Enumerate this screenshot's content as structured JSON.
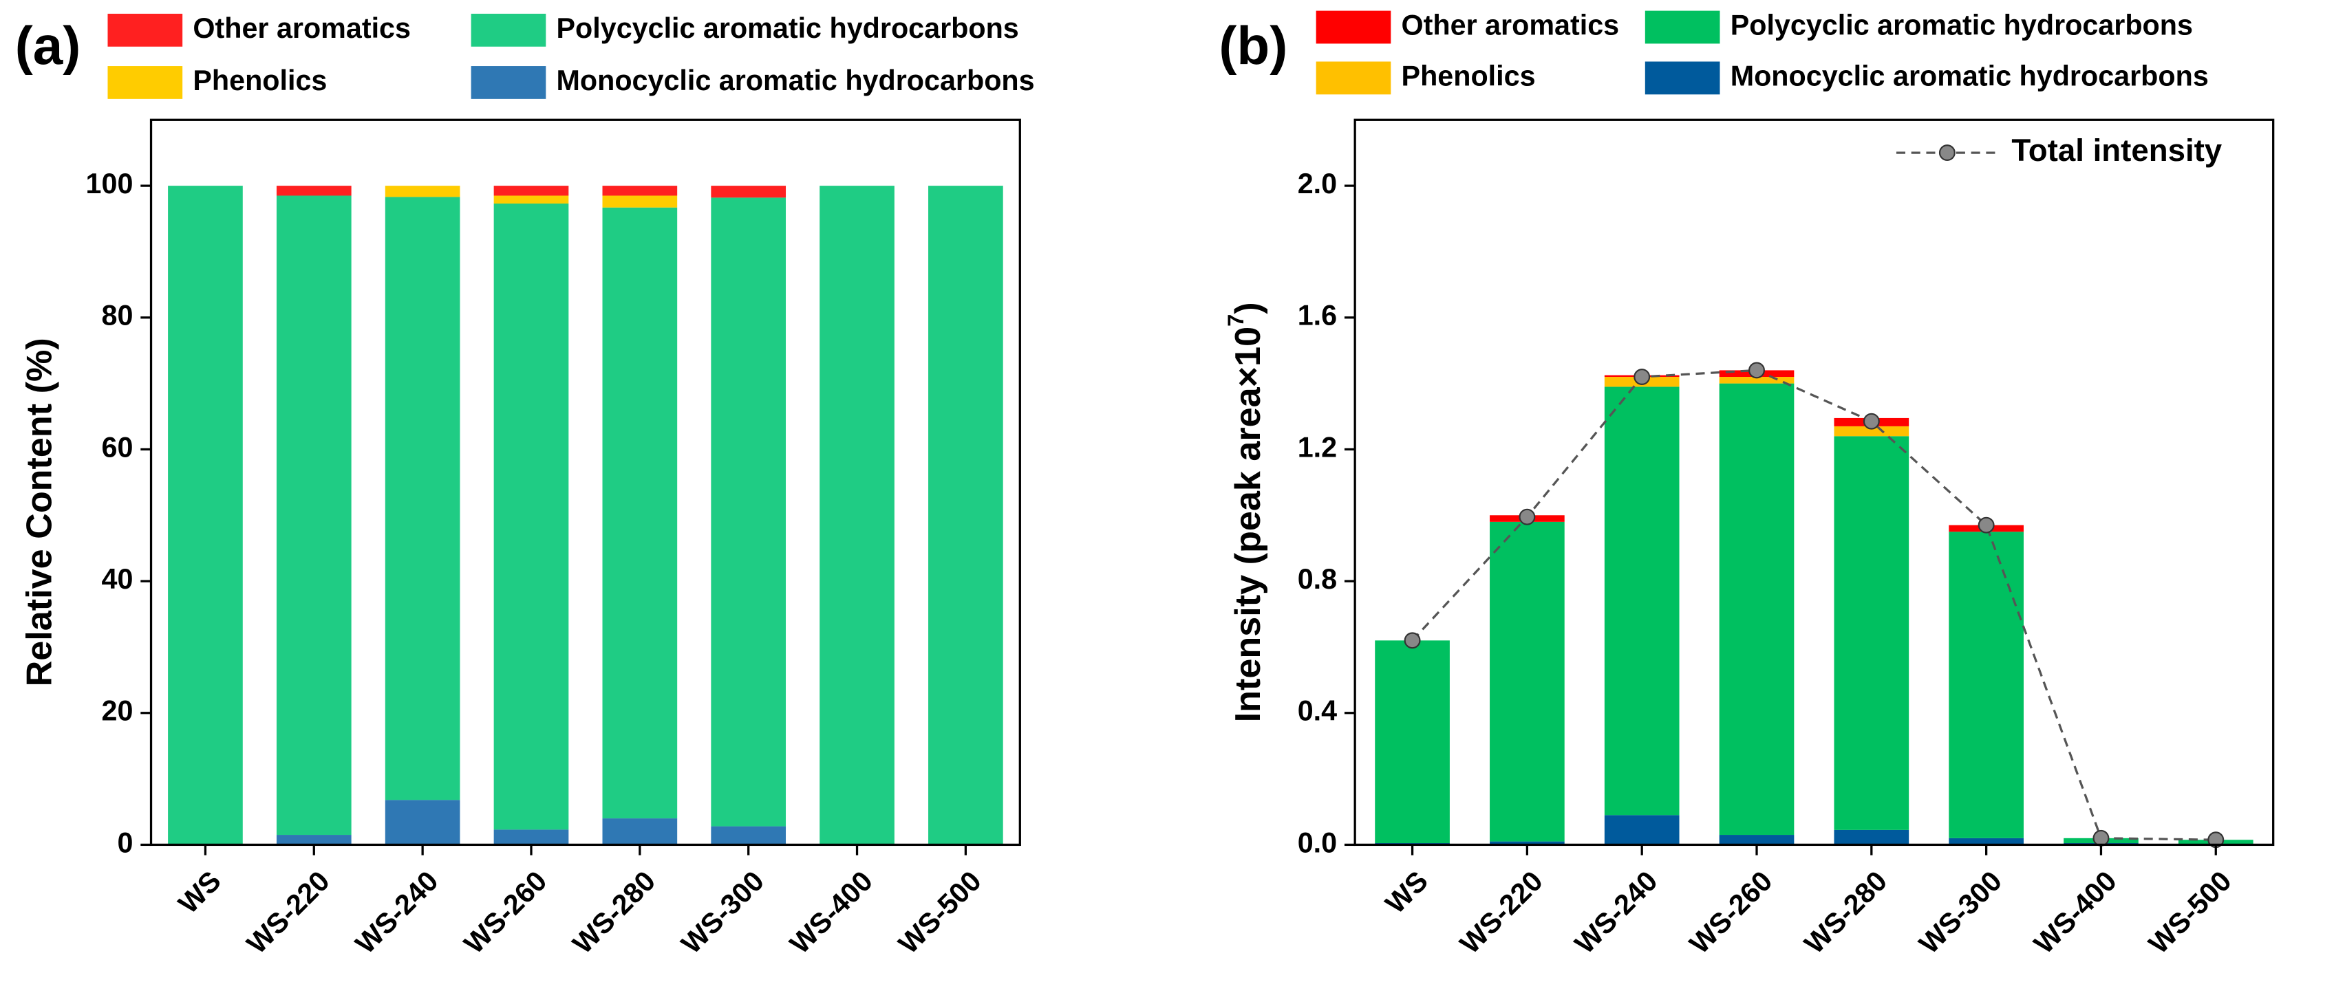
{
  "chart_data": [
    {
      "type": "bar",
      "stacked": true,
      "label": "(a)",
      "ylabel": "Relative Content (%)",
      "categories": [
        "WS",
        "WS-220",
        "WS-240",
        "WS-260",
        "WS-280",
        "WS-300",
        "WS-400",
        "WS-500"
      ],
      "series": [
        {
          "name": "Monocyclic aromatic hydrocarbons",
          "color": "#2f78b4",
          "values": [
            0,
            1.5,
            6.8,
            2.3,
            4,
            2.8,
            0,
            0
          ]
        },
        {
          "name": "Polycyclic aromatic hydrocarbons",
          "color": "#1fcc84",
          "values": [
            100,
            97,
            91.5,
            95,
            92.7,
            95.4,
            100,
            100
          ]
        },
        {
          "name": "Phenolics",
          "color": "#ffcc00",
          "values": [
            0,
            0,
            1.7,
            1.2,
            1.8,
            0,
            0,
            0
          ]
        },
        {
          "name": "Other aromatics",
          "color": "#ff2020",
          "values": [
            0,
            1.5,
            0,
            1.5,
            1.5,
            1.8,
            0,
            0
          ]
        }
      ],
      "ylim": [
        0,
        110
      ],
      "yticks": [
        0,
        20,
        40,
        60,
        80,
        100
      ]
    },
    {
      "type": "bar",
      "stacked": true,
      "label": "(b)",
      "ylabel_parts": [
        "Intensity (peak area×10",
        "7",
        ")"
      ],
      "categories": [
        "WS",
        "WS-220",
        "WS-240",
        "WS-260",
        "WS-280",
        "WS-300",
        "WS-400",
        "WS-500"
      ],
      "series": [
        {
          "name": "Monocyclic aromatic hydrocarbons",
          "color": "#005a9c",
          "values": [
            0.005,
            0.01,
            0.09,
            0.03,
            0.045,
            0.02,
            0.005,
            0.003
          ]
        },
        {
          "name": "Polycyclic aromatic hydrocarbons",
          "color": "#00c060",
          "values": [
            0.615,
            0.97,
            1.3,
            1.37,
            1.195,
            0.93,
            0.015,
            0.012
          ]
        },
        {
          "name": "Phenolics",
          "color": "#ffc000",
          "values": [
            0,
            0,
            0.03,
            0.02,
            0.03,
            0,
            0,
            0
          ]
        },
        {
          "name": "Other aromatics",
          "color": "#ff0000",
          "values": [
            0,
            0.02,
            0.005,
            0.02,
            0.025,
            0.02,
            0,
            0
          ]
        }
      ],
      "line": {
        "name": "Total intensity",
        "color": "#555555",
        "values": [
          0.62,
          0.995,
          1.42,
          1.44,
          1.285,
          0.97,
          0.02,
          0.015
        ]
      },
      "ylim": [
        0,
        2.2
      ],
      "yticks": [
        {
          "value": 0,
          "label": "0.0"
        },
        0.4,
        0.8,
        1.2,
        1.6,
        {
          "value": 2,
          "label": "2.0"
        }
      ]
    }
  ]
}
